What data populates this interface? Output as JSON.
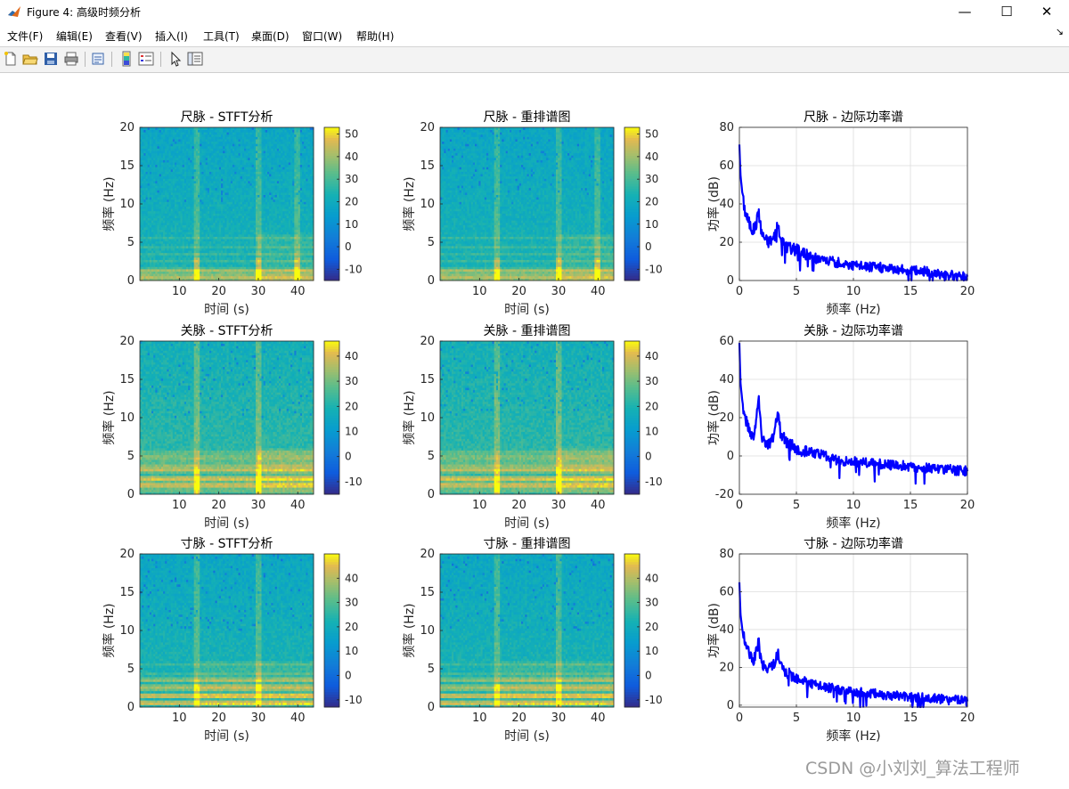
{
  "window": {
    "title": "Figure 4: 高级时频分析",
    "minimize": "—",
    "maximize": "☐",
    "close": "✕"
  },
  "menu": [
    {
      "label": "文件(F)"
    },
    {
      "label": "编辑(E)"
    },
    {
      "label": "查看(V)"
    },
    {
      "label": "插入(I)"
    },
    {
      "label": "工具(T)"
    },
    {
      "label": "桌面(D)"
    },
    {
      "label": "窗口(W)"
    },
    {
      "label": "帮助(H)"
    }
  ],
  "menu_arrow": "↘",
  "toolbar": [
    "new-file-icon",
    "open-folder-icon",
    "save-icon",
    "print-icon",
    "print-preview-icon",
    "colorbar-icon",
    "legend-icon",
    "pointer-icon",
    "property-inspector-icon"
  ],
  "watermark": "CSDN @小刘刘_算法工程师",
  "chart_data": [
    {
      "type": "heatmap",
      "title": "尺脉 - STFT分析",
      "xlabel": "时间 (s)",
      "ylabel": "频率 (Hz)",
      "xticks": [
        10,
        20,
        30,
        40
      ],
      "yticks": [
        0,
        5,
        10,
        15,
        20
      ],
      "xlim": [
        0,
        44
      ],
      "ylim": [
        0,
        20
      ],
      "colorbar": {
        "ticks": [
          -10,
          0,
          10,
          20,
          30,
          40,
          50
        ],
        "range": [
          -15,
          53
        ]
      },
      "bright_times": [
        14.5,
        30,
        40
      ],
      "strong_bands": [
        0.5,
        1.2
      ],
      "band_spacing": 1.0,
      "energy_change_time": 30
    },
    {
      "type": "heatmap",
      "title": "尺脉 - 重排谱图",
      "xlabel": "时间 (s)",
      "ylabel": "频率 (Hz)",
      "xticks": [
        10,
        20,
        30,
        40
      ],
      "yticks": [
        0,
        5,
        10,
        15,
        20
      ],
      "xlim": [
        0,
        44
      ],
      "ylim": [
        0,
        20
      ],
      "colorbar": {
        "ticks": [
          -10,
          0,
          10,
          20,
          30,
          40,
          50
        ],
        "range": [
          -15,
          53
        ]
      },
      "bright_times": [
        14.5,
        30,
        40
      ],
      "strong_bands": [
        0.5,
        1.2
      ],
      "band_spacing": 1.0,
      "energy_change_time": 30
    },
    {
      "type": "line",
      "title": "尺脉 - 边际功率谱",
      "xlabel": "频率 (Hz)",
      "ylabel": "功率 (dB)",
      "xticks": [
        0,
        5,
        10,
        15,
        20
      ],
      "yticks": [
        0,
        20,
        40,
        60,
        80
      ],
      "xlim": [
        0,
        20
      ],
      "ylim": [
        0,
        80
      ],
      "grid": true,
      "color": "#0000ff",
      "x": [
        0,
        0.1,
        0.3,
        0.5,
        0.8,
        1.0,
        1.2,
        1.5,
        1.7,
        1.8,
        2.0,
        2.5,
        3.0,
        3.2,
        3.4,
        3.6,
        4.0,
        4.5,
        5.0,
        6.0,
        7.0,
        8.0,
        9.0,
        10.0,
        12.0,
        14.0,
        16.0,
        18.0,
        20.0
      ],
      "y": [
        71,
        55,
        43,
        36,
        31,
        28,
        26,
        30,
        37,
        30,
        24,
        20,
        22,
        26,
        28,
        22,
        18,
        17,
        16,
        13,
        11,
        10,
        9,
        8,
        7,
        6,
        5,
        3,
        2
      ]
    },
    {
      "type": "heatmap",
      "title": "关脉 - STFT分析",
      "xlabel": "时间 (s)",
      "ylabel": "频率 (Hz)",
      "xticks": [
        10,
        20,
        30,
        40
      ],
      "yticks": [
        0,
        5,
        10,
        15,
        20
      ],
      "xlim": [
        0,
        44
      ],
      "ylim": [
        0,
        20
      ],
      "colorbar": {
        "ticks": [
          -10,
          0,
          10,
          20,
          30,
          40
        ],
        "range": [
          -15,
          46
        ]
      },
      "bright_times": [
        14.5,
        30
      ],
      "strong_bands": [
        1.2,
        2.2,
        3.5,
        4.8
      ],
      "band_spacing": 1.2,
      "energy_change_time": 30
    },
    {
      "type": "heatmap",
      "title": "关脉 - 重排谱图",
      "xlabel": "时间 (s)",
      "ylabel": "频率 (Hz)",
      "xticks": [
        10,
        20,
        30,
        40
      ],
      "yticks": [
        0,
        5,
        10,
        15,
        20
      ],
      "xlim": [
        0,
        44
      ],
      "ylim": [
        0,
        20
      ],
      "colorbar": {
        "ticks": [
          -10,
          0,
          10,
          20,
          30,
          40
        ],
        "range": [
          -15,
          46
        ]
      },
      "bright_times": [
        14.5,
        30
      ],
      "strong_bands": [
        1.2,
        2.2,
        3.5,
        4.8
      ],
      "band_spacing": 1.2,
      "energy_change_time": 30
    },
    {
      "type": "line",
      "title": "关脉 - 边际功率谱",
      "xlabel": "频率 (Hz)",
      "ylabel": "功率 (dB)",
      "xticks": [
        0,
        5,
        10,
        15,
        20
      ],
      "yticks": [
        -20,
        0,
        20,
        40,
        60
      ],
      "xlim": [
        0,
        20
      ],
      "ylim": [
        -20,
        60
      ],
      "grid": true,
      "color": "#0000ff",
      "x": [
        0,
        0.1,
        0.3,
        0.5,
        0.8,
        1.0,
        1.2,
        1.5,
        1.7,
        1.8,
        2.0,
        2.5,
        3.0,
        3.2,
        3.4,
        3.6,
        4.0,
        4.5,
        5.0,
        6.0,
        7.0,
        8.0,
        9.0,
        10.0,
        12.0,
        14.0,
        16.0,
        18.0,
        20.0
      ],
      "y": [
        59,
        38,
        26,
        20,
        15,
        12,
        10,
        20,
        31,
        20,
        10,
        6,
        10,
        18,
        24,
        12,
        8,
        6,
        4,
        2,
        1,
        -1,
        -3,
        -3,
        -4,
        -5,
        -6,
        -7,
        -8
      ]
    },
    {
      "type": "heatmap",
      "title": "寸脉 - STFT分析",
      "xlabel": "时间 (s)",
      "ylabel": "频率 (Hz)",
      "xticks": [
        10,
        20,
        30,
        40
      ],
      "yticks": [
        0,
        5,
        10,
        15,
        20
      ],
      "xlim": [
        0,
        44
      ],
      "ylim": [
        0,
        20
      ],
      "colorbar": {
        "ticks": [
          -10,
          0,
          10,
          20,
          30,
          40
        ],
        "range": [
          -13,
          50
        ]
      },
      "bright_times": [
        14.5,
        30
      ],
      "strong_bands": [
        0.6,
        1.6,
        2.6,
        3.6
      ],
      "band_spacing": 1.0,
      "energy_change_time": 15
    },
    {
      "type": "heatmap",
      "title": "寸脉 - 重排谱图",
      "xlabel": "时间 (s)",
      "ylabel": "频率 (Hz)",
      "xticks": [
        10,
        20,
        30,
        40
      ],
      "yticks": [
        0,
        5,
        10,
        15,
        20
      ],
      "xlim": [
        0,
        44
      ],
      "ylim": [
        0,
        20
      ],
      "colorbar": {
        "ticks": [
          -10,
          0,
          10,
          20,
          30,
          40
        ],
        "range": [
          -13,
          50
        ]
      },
      "bright_times": [
        14.5,
        30
      ],
      "strong_bands": [
        0.6,
        1.6,
        2.6,
        3.6
      ],
      "band_spacing": 1.0,
      "energy_change_time": 15
    },
    {
      "type": "line",
      "title": "寸脉 - 边际功率谱",
      "xlabel": "频率 (Hz)",
      "ylabel": "功率 (dB)",
      "xticks": [
        0,
        5,
        10,
        15,
        20
      ],
      "yticks": [
        0,
        20,
        40,
        60,
        80
      ],
      "xlim": [
        0,
        20
      ],
      "ylim": [
        -1,
        80
      ],
      "grid": true,
      "color": "#0000ff",
      "x": [
        0,
        0.1,
        0.3,
        0.5,
        0.8,
        1.0,
        1.2,
        1.5,
        1.7,
        1.8,
        2.0,
        2.5,
        3.0,
        3.2,
        3.4,
        3.6,
        4.0,
        4.5,
        5.0,
        6.0,
        7.0,
        8.0,
        9.0,
        10.0,
        12.0,
        14.0,
        16.0,
        18.0,
        20.0
      ],
      "y": [
        65,
        48,
        38,
        33,
        28,
        25,
        23,
        28,
        35,
        27,
        21,
        19,
        22,
        25,
        27,
        21,
        17,
        16,
        15,
        12,
        10,
        9,
        8,
        7,
        6,
        5,
        4,
        3,
        2
      ]
    }
  ]
}
